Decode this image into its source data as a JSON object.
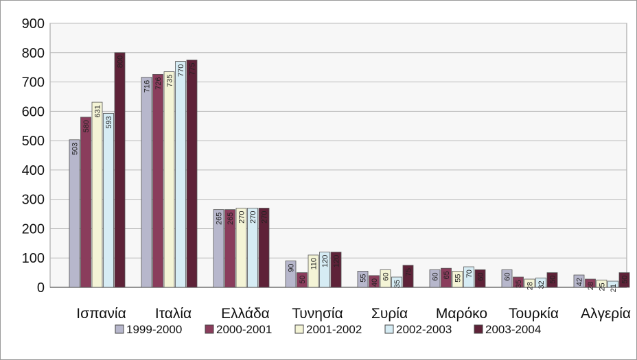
{
  "chart_data": {
    "type": "bar",
    "title": "",
    "xlabel": "",
    "ylabel": "",
    "ylim": [
      0,
      900
    ],
    "yticks": [
      0,
      100,
      200,
      300,
      400,
      500,
      600,
      700,
      800,
      900
    ],
    "grid": true,
    "legend_position": "bottom",
    "categories": [
      "Ισπανία",
      "Ιταλία",
      "Ελλάδα",
      "Τυνησία",
      "Συρία",
      "Μαρόκο",
      "Τουρκία",
      "Αλγερία"
    ],
    "series": [
      {
        "name": "1999-2000",
        "color": "#b7b7cc",
        "values": [
          503,
          716,
          265,
          90,
          55,
          60,
          60,
          42
        ],
        "labels": [
          "503",
          "716",
          "265",
          "90",
          "55",
          "60",
          "60",
          "42"
        ]
      },
      {
        "name": "2000-2001",
        "color": "#8a3d5c",
        "values": [
          580,
          726,
          265,
          50,
          40,
          65,
          35,
          28
        ],
        "labels": [
          "580",
          "726",
          "265",
          "50",
          "40",
          "65",
          "35",
          "28"
        ]
      },
      {
        "name": "2001-2002",
        "color": "#f4f4d6",
        "values": [
          631,
          735,
          270,
          110,
          60,
          55,
          28,
          25
        ],
        "labels": [
          "631",
          "735",
          "270",
          "110",
          "60",
          "55",
          "28",
          "25"
        ]
      },
      {
        "name": "2002-2003",
        "color": "#d6ecf4",
        "values": [
          593,
          770,
          270,
          120,
          35,
          70,
          32,
          21
        ],
        "labels": [
          "593",
          "770",
          "270",
          "120",
          "35",
          "70",
          "32",
          "21"
        ]
      },
      {
        "name": "2003-2004",
        "color": "#5e2238",
        "values": [
          800,
          775,
          270,
          120,
          75,
          60,
          50,
          50
        ],
        "labels": [
          "800",
          "775",
          "270",
          "120",
          "75",
          "60",
          "50",
          "50"
        ]
      }
    ]
  }
}
